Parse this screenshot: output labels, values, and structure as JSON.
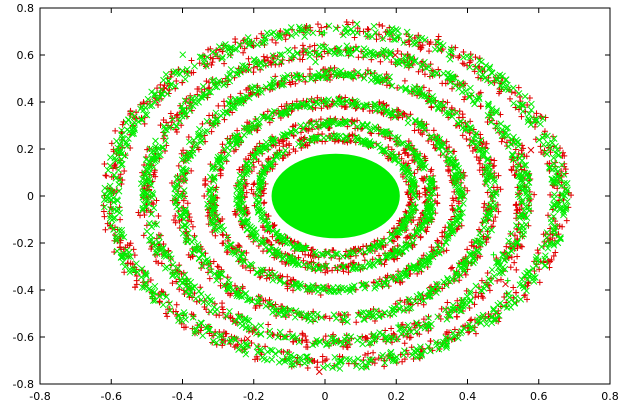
{
  "chart_data": {
    "type": "scatter",
    "title": "",
    "xlabel": "",
    "ylabel": "",
    "xlim": [
      -0.8,
      0.8
    ],
    "ylim": [
      -0.8,
      0.8
    ],
    "x_ticks": [
      "-0.8",
      "-0.6",
      "-0.4",
      "-0.2",
      "0",
      "0.2",
      "0.4",
      "0.6",
      "0.8"
    ],
    "y_ticks": [
      "0.8",
      "0.6",
      "0.4",
      "0.2",
      "0",
      "-0.2",
      "-0.4",
      "-0.6",
      "-0.8"
    ],
    "grid": false,
    "legend": "none",
    "center": [
      0.03,
      0.0
    ],
    "core_ellipse": {
      "rx": 0.18,
      "ry": 0.18
    },
    "rings": [
      {
        "rx": 0.22,
        "ry": 0.25
      },
      {
        "rx": 0.27,
        "ry": 0.31
      },
      {
        "rx": 0.35,
        "ry": 0.4
      },
      {
        "rx": 0.44,
        "ry": 0.52
      },
      {
        "rx": 0.53,
        "ry": 0.62
      },
      {
        "rx": 0.63,
        "ry": 0.71
      }
    ],
    "series": [
      {
        "marker": "plus",
        "color": "#e00000"
      },
      {
        "marker": "cross",
        "color": "#00ee00"
      }
    ]
  }
}
